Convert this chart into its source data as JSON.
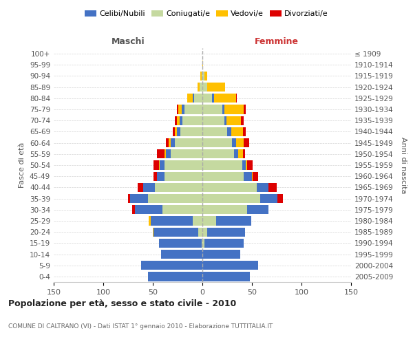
{
  "age_groups": [
    "0-4",
    "5-9",
    "10-14",
    "15-19",
    "20-24",
    "25-29",
    "30-34",
    "35-39",
    "40-44",
    "45-49",
    "50-54",
    "55-59",
    "60-64",
    "65-69",
    "70-74",
    "75-79",
    "80-84",
    "85-89",
    "90-94",
    "95-99",
    "100+"
  ],
  "birth_years": [
    "2005-2009",
    "2000-2004",
    "1995-1999",
    "1990-1994",
    "1985-1989",
    "1980-1984",
    "1975-1979",
    "1970-1974",
    "1965-1969",
    "1960-1964",
    "1955-1959",
    "1950-1954",
    "1945-1949",
    "1940-1944",
    "1935-1939",
    "1930-1934",
    "1925-1929",
    "1920-1924",
    "1915-1919",
    "1910-1914",
    "≤ 1909"
  ],
  "maschi": {
    "celibi": [
      55,
      62,
      42,
      43,
      45,
      42,
      28,
      18,
      12,
      8,
      5,
      5,
      4,
      4,
      3,
      3,
      2,
      0,
      0,
      0,
      0
    ],
    "coniugati": [
      0,
      0,
      0,
      1,
      4,
      10,
      40,
      55,
      48,
      38,
      38,
      32,
      28,
      22,
      20,
      18,
      8,
      3,
      1,
      0,
      0
    ],
    "vedovi": [
      0,
      0,
      0,
      0,
      1,
      2,
      0,
      0,
      0,
      0,
      1,
      1,
      2,
      2,
      3,
      3,
      5,
      2,
      1,
      0,
      0
    ],
    "divorziati": [
      0,
      0,
      0,
      0,
      0,
      0,
      3,
      2,
      5,
      3,
      5,
      8,
      3,
      2,
      2,
      2,
      0,
      0,
      0,
      0,
      0
    ]
  },
  "femmine": {
    "nubili": [
      48,
      56,
      38,
      40,
      38,
      35,
      22,
      18,
      12,
      8,
      4,
      4,
      4,
      4,
      2,
      2,
      2,
      0,
      0,
      0,
      0
    ],
    "coniugate": [
      0,
      0,
      0,
      2,
      5,
      14,
      45,
      58,
      55,
      42,
      40,
      32,
      30,
      25,
      22,
      20,
      10,
      5,
      2,
      0,
      0
    ],
    "vedove": [
      0,
      0,
      0,
      0,
      0,
      0,
      0,
      0,
      0,
      1,
      1,
      5,
      8,
      12,
      15,
      20,
      22,
      18,
      3,
      1,
      0
    ],
    "divorziate": [
      0,
      0,
      0,
      0,
      0,
      0,
      0,
      5,
      8,
      5,
      6,
      2,
      5,
      3,
      3,
      2,
      1,
      0,
      0,
      0,
      0
    ]
  },
  "color_celibi": "#4472c4",
  "color_coniugati": "#c5d9a0",
  "color_vedovi": "#ffc000",
  "color_divorziati": "#dd0000",
  "xlim": 150,
  "title": "Popolazione per età, sesso e stato civile - 2010",
  "subtitle": "COMUNE DI CALTRANO (VI) - Dati ISTAT 1° gennaio 2010 - Elaborazione TUTTITALIA.IT",
  "xlabel_left": "Maschi",
  "xlabel_right": "Femmine",
  "ylabel_left": "Fasce di età",
  "ylabel_right": "Anni di nascita"
}
